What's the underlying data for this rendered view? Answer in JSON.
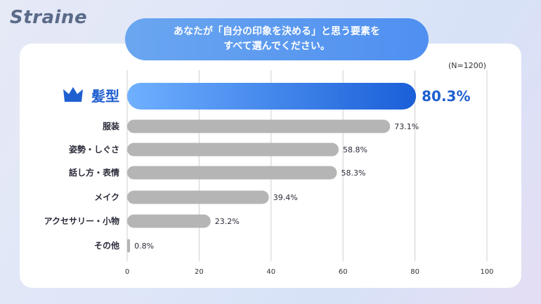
{
  "brand": "Straine",
  "question": {
    "line1": "あなたが「自分の印象を決める」と思う要素を",
    "line2": "すべて選んでください。"
  },
  "sample_size": "(N=1200)",
  "colors": {
    "highlight_start": "#6fb0ff",
    "highlight_end": "#1a5fd8",
    "bar": "#b5b5b5",
    "grid": "#cfcfcf",
    "accent_text": "#1f5fd0"
  },
  "highlight_icon": "crown-icon",
  "chart_data": {
    "type": "bar",
    "orientation": "horizontal",
    "categories": [
      "髪型",
      "服装",
      "姿勢・しぐさ",
      "話し方・表情",
      "メイク",
      "アクセサリー・小物",
      "その他"
    ],
    "values": [
      80.3,
      73.1,
      58.8,
      58.3,
      39.4,
      23.2,
      0.8
    ],
    "value_labels": [
      "80.3%",
      "73.1%",
      "58.8%",
      "58.3%",
      "39.4%",
      "23.2%",
      "0.8%"
    ],
    "xlim": [
      0,
      100
    ],
    "xticks": [
      "0",
      "20",
      "40",
      "60",
      "80",
      "100"
    ],
    "grid": true,
    "highlight_index": 0
  }
}
